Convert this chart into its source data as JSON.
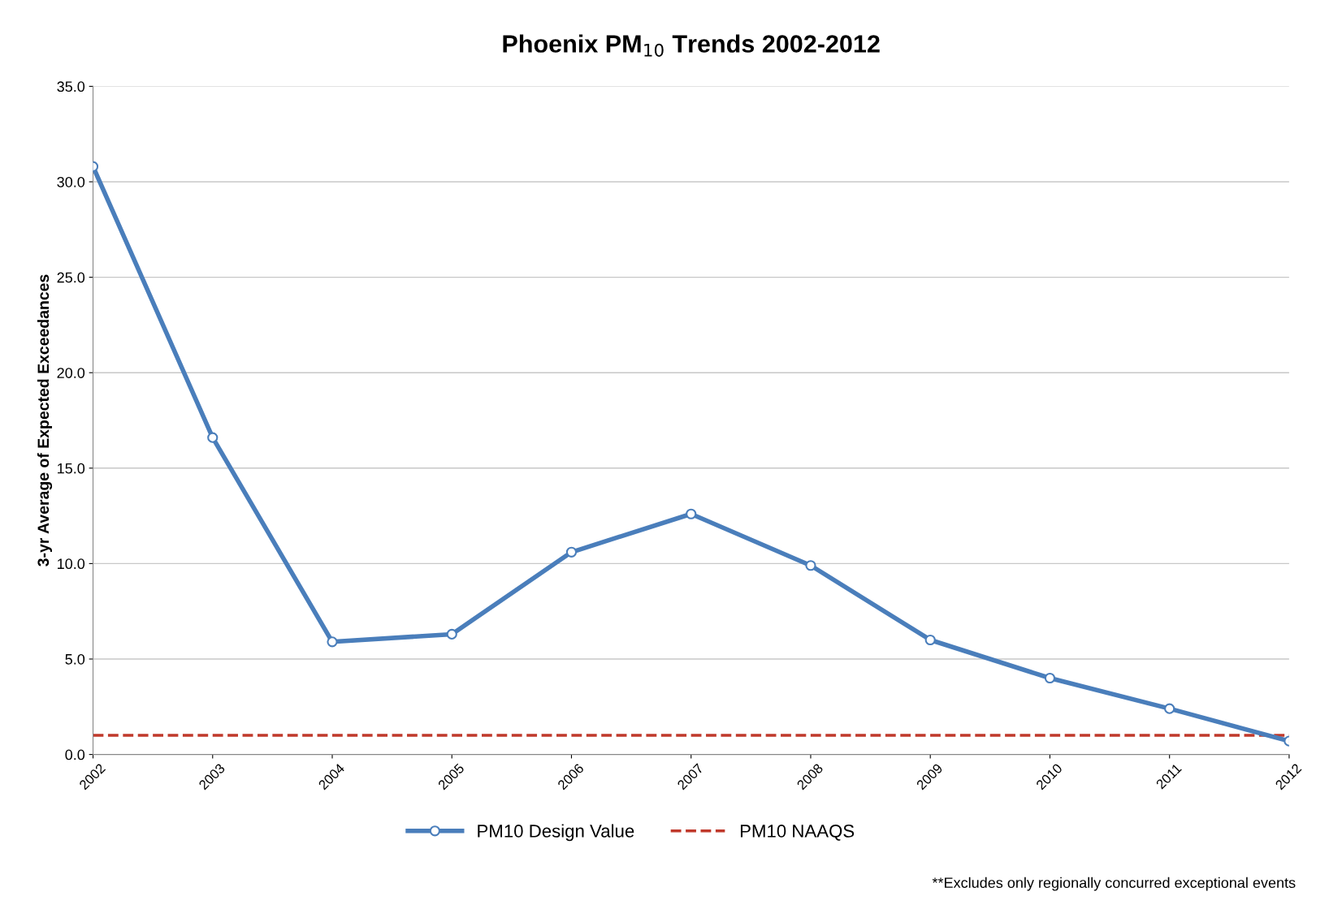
{
  "chart_data": {
    "type": "line",
    "title": "Phoenix PM$_{10}$ Trends 2002-2012",
    "ylabel": "3-yr Average of Expected Exceedances",
    "categories": [
      "2002",
      "2003",
      "2004",
      "2005",
      "2006",
      "2007",
      "2008",
      "2009",
      "2010",
      "2011",
      "2012"
    ],
    "series": [
      {
        "name": "PM10 Design Value",
        "color": "#4a7ebb",
        "values": [
          30.8,
          16.6,
          5.9,
          6.3,
          10.6,
          12.6,
          9.9,
          6.0,
          4.0,
          2.4,
          0.7
        ]
      }
    ],
    "ref_lines": [
      {
        "axis": "y",
        "value": 1.0,
        "label": "PM10 NAAQS",
        "color": "#c0392b",
        "line_style": "dashed"
      }
    ],
    "ylim": [
      0,
      35
    ],
    "yticks": [
      {
        "value": 0,
        "label": "0.0"
      },
      {
        "value": 5,
        "label": "5.0"
      },
      {
        "value": 10,
        "label": "10.0"
      },
      {
        "value": 15,
        "label": "15.0"
      },
      {
        "value": 20,
        "label": "20.0"
      },
      {
        "value": 25,
        "label": "25.0"
      },
      {
        "value": 30,
        "label": "30.0"
      },
      {
        "value": 35,
        "label": "35.0"
      }
    ],
    "grid": "y",
    "legend": "bottom",
    "marker": "circle",
    "line_style": "solid",
    "annotations": [
      "**Excludes only regionally concurred exceptional events"
    ]
  }
}
